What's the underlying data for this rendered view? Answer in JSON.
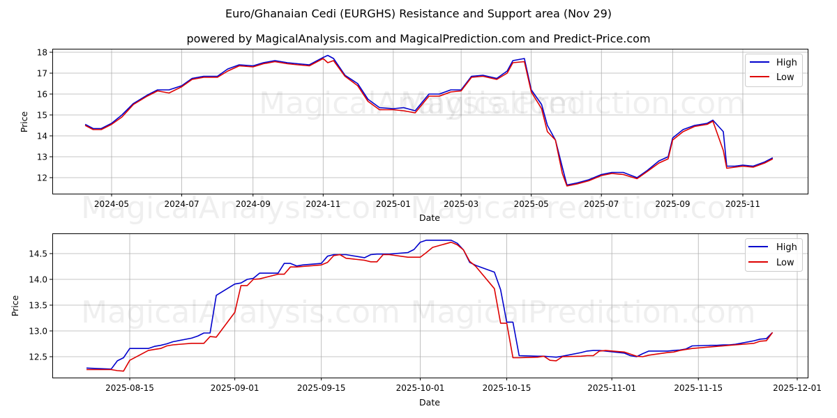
{
  "header": {
    "title": "Euro/Ghanaian Cedi (EURGHS) Resistance and Support area (Nov 29)",
    "subtitle": "powered by MagicalAnalysis.com and MagicalPrediction.com and Predict-Price.com"
  },
  "watermarks": [
    "MagicalAnalysis.com",
    "MagicalPrediction.com"
  ],
  "colors": {
    "high": "#0000cc",
    "low": "#dd0000",
    "grid": "#b0b0b0"
  },
  "chart_data": [
    {
      "type": "line",
      "title": "Long-term EURGHS High/Low",
      "xlabel": "Date",
      "ylabel": "Price",
      "ylim": [
        11.3,
        18.2
      ],
      "yticks": [
        "12",
        "13",
        "14",
        "15",
        "16",
        "17",
        "18"
      ],
      "xticks": [
        "2024-05",
        "2024-07",
        "2024-09",
        "2024-11",
        "2025-01",
        "2025-03",
        "2025-05",
        "2025-07",
        "2025-09",
        "2025-11"
      ],
      "grid": true,
      "legend": {
        "position": "upper right",
        "entries": [
          "High",
          "Low"
        ]
      },
      "x": [
        "2024-04-08",
        "2024-04-15",
        "2024-04-22",
        "2024-05-01",
        "2024-05-10",
        "2024-05-20",
        "2024-06-01",
        "2024-06-10",
        "2024-06-20",
        "2024-07-01",
        "2024-07-10",
        "2024-07-20",
        "2024-08-01",
        "2024-08-10",
        "2024-08-20",
        "2024-09-01",
        "2024-09-10",
        "2024-09-20",
        "2024-10-01",
        "2024-10-10",
        "2024-10-20",
        "2024-11-01",
        "2024-11-05",
        "2024-11-10",
        "2024-11-20",
        "2024-12-01",
        "2024-12-10",
        "2024-12-20",
        "2025-01-01",
        "2025-01-10",
        "2025-01-20",
        "2025-02-01",
        "2025-02-10",
        "2025-02-20",
        "2025-03-01",
        "2025-03-10",
        "2025-03-20",
        "2025-04-01",
        "2025-04-10",
        "2025-04-15",
        "2025-04-25",
        "2025-05-01",
        "2025-05-10",
        "2025-05-15",
        "2025-05-22",
        "2025-05-28",
        "2025-06-01",
        "2025-06-10",
        "2025-06-20",
        "2025-07-01",
        "2025-07-10",
        "2025-07-20",
        "2025-08-01",
        "2025-08-10",
        "2025-08-20",
        "2025-08-28",
        "2025-09-01",
        "2025-09-10",
        "2025-09-20",
        "2025-10-01",
        "2025-10-06",
        "2025-10-15",
        "2025-10-18",
        "2025-10-25",
        "2025-11-01",
        "2025-11-10",
        "2025-11-20",
        "2025-11-27"
      ],
      "series": [
        {
          "name": "High",
          "values": [
            14.55,
            14.35,
            14.35,
            14.6,
            15.0,
            15.55,
            15.95,
            16.2,
            16.2,
            16.4,
            16.75,
            16.85,
            16.85,
            17.2,
            17.4,
            17.35,
            17.5,
            17.6,
            17.5,
            17.45,
            17.4,
            17.75,
            17.85,
            17.7,
            16.9,
            16.5,
            15.75,
            15.35,
            15.3,
            15.35,
            15.2,
            16.0,
            16.0,
            16.2,
            16.2,
            16.85,
            16.9,
            16.75,
            17.1,
            17.6,
            17.7,
            16.2,
            15.5,
            14.5,
            13.8,
            12.5,
            11.65,
            11.75,
            11.9,
            12.15,
            12.25,
            12.25,
            12.0,
            12.35,
            12.8,
            13.0,
            13.9,
            14.3,
            14.5,
            14.6,
            14.75,
            14.2,
            12.55,
            12.55,
            12.6,
            12.55,
            12.75,
            12.95
          ]
        },
        {
          "name": "Low",
          "values": [
            14.5,
            14.3,
            14.3,
            14.55,
            14.9,
            15.5,
            15.9,
            16.15,
            16.05,
            16.35,
            16.7,
            16.8,
            16.8,
            17.1,
            17.35,
            17.3,
            17.45,
            17.55,
            17.45,
            17.4,
            17.35,
            17.7,
            17.5,
            17.6,
            16.85,
            16.4,
            15.65,
            15.25,
            15.25,
            15.2,
            15.1,
            15.9,
            15.9,
            16.1,
            16.15,
            16.8,
            16.85,
            16.7,
            17.0,
            17.5,
            17.55,
            16.1,
            15.3,
            14.2,
            13.8,
            12.2,
            11.6,
            11.7,
            11.85,
            12.1,
            12.2,
            12.15,
            11.95,
            12.3,
            12.7,
            12.9,
            13.8,
            14.2,
            14.45,
            14.55,
            14.7,
            13.3,
            12.45,
            12.5,
            12.55,
            12.5,
            12.7,
            12.9
          ]
        }
      ]
    },
    {
      "type": "line",
      "title": "Recent EURGHS High/Low",
      "xlabel": "Date",
      "ylabel": "Price",
      "ylim": [
        12.1,
        14.9
      ],
      "yticks": [
        "12.5",
        "13.0",
        "13.5",
        "14.0",
        "14.5"
      ],
      "xticks": [
        "2025-08-15",
        "2025-09-01",
        "2025-09-15",
        "2025-10-01",
        "2025-10-15",
        "2025-11-01",
        "2025-11-15",
        "2025-12-01"
      ],
      "grid": true,
      "legend": {
        "position": "upper right",
        "entries": [
          "High",
          "Low"
        ]
      },
      "x": [
        "2025-08-08",
        "2025-08-12",
        "2025-08-13",
        "2025-08-14",
        "2025-08-15",
        "2025-08-18",
        "2025-08-19",
        "2025-08-20",
        "2025-08-21",
        "2025-08-22",
        "2025-08-25",
        "2025-08-26",
        "2025-08-27",
        "2025-08-28",
        "2025-08-29",
        "2025-09-01",
        "2025-09-02",
        "2025-09-03",
        "2025-09-04",
        "2025-09-05",
        "2025-09-08",
        "2025-09-09",
        "2025-09-10",
        "2025-09-11",
        "2025-09-12",
        "2025-09-15",
        "2025-09-16",
        "2025-09-17",
        "2025-09-18",
        "2025-09-19",
        "2025-09-22",
        "2025-09-23",
        "2025-09-24",
        "2025-09-25",
        "2025-09-26",
        "2025-09-29",
        "2025-09-30",
        "2025-10-01",
        "2025-10-02",
        "2025-10-03",
        "2025-10-06",
        "2025-10-07",
        "2025-10-08",
        "2025-10-09",
        "2025-10-10",
        "2025-10-13",
        "2025-10-14",
        "2025-10-15",
        "2025-10-16",
        "2025-10-17",
        "2025-10-20",
        "2025-10-21",
        "2025-10-22",
        "2025-10-23",
        "2025-10-24",
        "2025-10-27",
        "2025-10-28",
        "2025-10-29",
        "2025-10-30",
        "2025-10-31",
        "2025-11-03",
        "2025-11-04",
        "2025-11-05",
        "2025-11-06",
        "2025-11-07",
        "2025-11-10",
        "2025-11-11",
        "2025-11-12",
        "2025-11-13",
        "2025-11-14",
        "2025-11-17",
        "2025-11-18",
        "2025-11-19",
        "2025-11-20",
        "2025-11-21",
        "2025-11-24",
        "2025-11-25",
        "2025-11-26",
        "2025-11-27"
      ],
      "series": [
        {
          "name": "High",
          "values": [
            12.28,
            12.26,
            12.42,
            12.48,
            12.66,
            12.66,
            12.7,
            12.72,
            12.75,
            12.79,
            12.86,
            12.9,
            12.96,
            12.96,
            13.69,
            13.91,
            13.93,
            14.0,
            14.02,
            14.12,
            14.12,
            14.31,
            14.31,
            14.26,
            14.28,
            14.31,
            14.45,
            14.48,
            14.48,
            14.48,
            14.42,
            14.48,
            14.49,
            14.49,
            14.49,
            14.52,
            14.58,
            14.72,
            14.76,
            14.76,
            14.76,
            14.7,
            14.57,
            14.33,
            14.27,
            14.14,
            13.8,
            13.17,
            13.17,
            12.52,
            12.51,
            12.51,
            12.5,
            12.49,
            12.51,
            12.58,
            12.61,
            12.62,
            12.62,
            12.61,
            12.57,
            12.52,
            12.5,
            12.56,
            12.61,
            12.61,
            12.62,
            12.63,
            12.65,
            12.71,
            12.72,
            12.72,
            12.73,
            12.73,
            12.74,
            12.81,
            12.84,
            12.85,
            12.97
          ]
        },
        {
          "name": "Low",
          "values": [
            12.25,
            12.25,
            12.23,
            12.22,
            12.43,
            12.62,
            12.64,
            12.66,
            12.71,
            12.73,
            12.76,
            12.76,
            12.76,
            12.89,
            12.88,
            13.36,
            13.88,
            13.88,
            14.0,
            14.01,
            14.1,
            14.1,
            14.24,
            14.24,
            14.25,
            14.28,
            14.33,
            14.46,
            14.48,
            14.41,
            14.37,
            14.34,
            14.34,
            14.48,
            14.48,
            14.43,
            14.43,
            14.43,
            14.52,
            14.62,
            14.72,
            14.67,
            14.57,
            14.35,
            14.25,
            13.82,
            13.15,
            13.15,
            12.48,
            12.48,
            12.49,
            12.51,
            12.43,
            12.42,
            12.5,
            12.51,
            12.52,
            12.52,
            12.61,
            12.62,
            12.59,
            12.55,
            12.51,
            12.5,
            12.53,
            12.58,
            12.59,
            12.62,
            12.64,
            12.66,
            12.69,
            12.7,
            12.71,
            12.72,
            12.73,
            12.76,
            12.8,
            12.81,
            12.97
          ]
        }
      ]
    }
  ]
}
